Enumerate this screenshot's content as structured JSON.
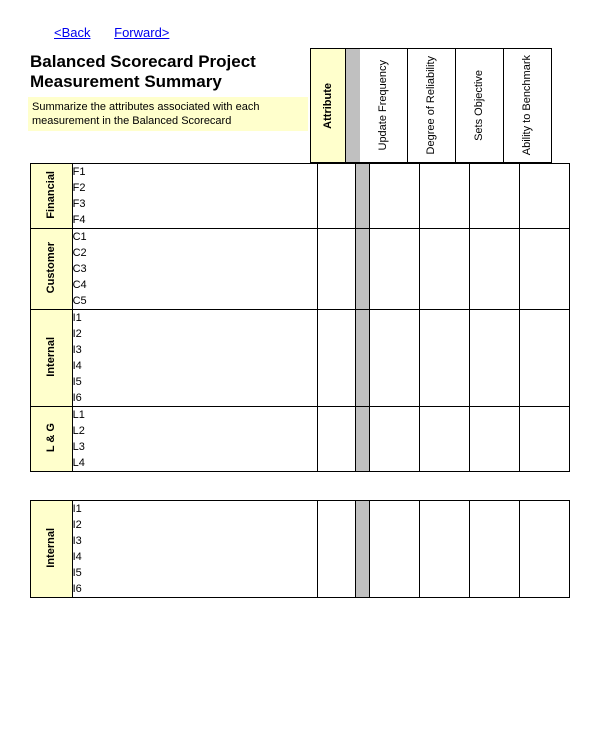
{
  "nav": {
    "back": "<Back",
    "forward": "Forward>"
  },
  "title_line1": "Balanced Scorecard Project",
  "title_line2": "Measurement Summary",
  "subtitle": "Summarize the attributes associated with each measurement in the Balanced Scorecard",
  "columns": {
    "attribute": "Attribute",
    "update_freq": "Update Frequency",
    "reliability": "Degree of Reliability",
    "sets_obj": "Sets Objective",
    "benchmark": "Ability to Benchmark"
  },
  "sections": [
    {
      "category": "Financial",
      "items": [
        "F1",
        "F2",
        "F3",
        "F4"
      ]
    },
    {
      "category": "Customer",
      "items": [
        "C1",
        "C2",
        "C3",
        "C4",
        "C5"
      ]
    },
    {
      "category": "Internal",
      "items": [
        "I1",
        "I2",
        "I3",
        "I4",
        "I5",
        "I6"
      ]
    },
    {
      "category": "L & G",
      "items": [
        "L1",
        "L2",
        "L3",
        "L4"
      ]
    }
  ],
  "sections2": [
    {
      "category": "Internal",
      "items": [
        "I1",
        "I2",
        "I3",
        "I4",
        "I5",
        "I6"
      ]
    }
  ],
  "colors": {
    "highlight": "#ffffcc",
    "gap": "#c0c0c0",
    "link": "#0000ee",
    "border": "#000000"
  }
}
